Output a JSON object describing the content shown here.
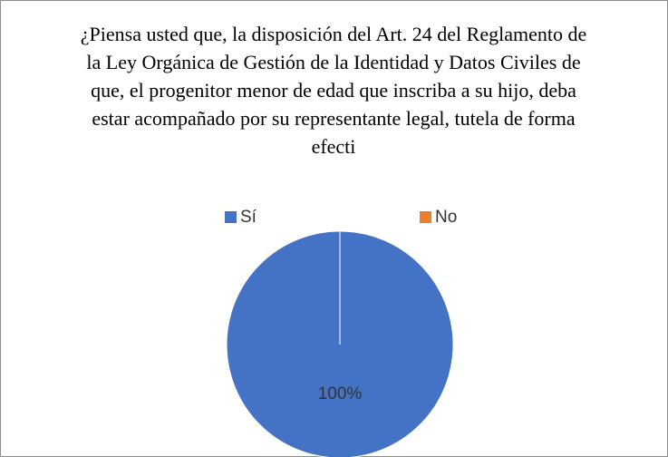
{
  "chart_data": {
    "type": "pie",
    "title": "¿Piensa usted que, la disposición del Art. 24 del Reglamento de la Ley Orgánica de Gestión de la Identidad y Datos Civiles de que, el progenitor menor de edad que inscriba a su hijo, deba estar acompañado por su representante legal, tutela de forma efecti",
    "categories": [
      "Sí",
      "No"
    ],
    "values": [
      100,
      0
    ],
    "value_labels": [
      "100%",
      null
    ],
    "colors": [
      "#4472c4",
      "#ed7d31"
    ],
    "legend": "top"
  }
}
